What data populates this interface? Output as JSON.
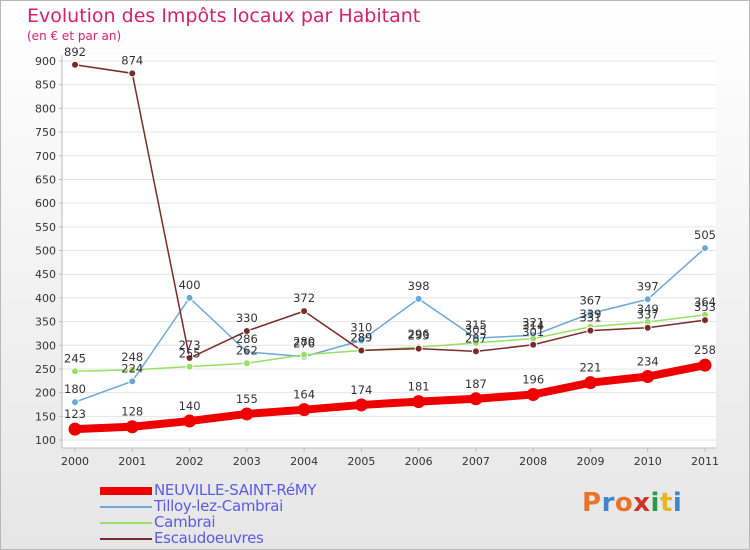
{
  "title": "Evolution des Impôts locaux par Habitant",
  "subtitle": "(en € et par an)",
  "logo": {
    "text": "Proxiti",
    "colors": [
      "#e8742a",
      "#3a86c8",
      "#e8742a",
      "#d0342c",
      "#2b9a46",
      "#e8b420",
      "#3a86c8"
    ]
  },
  "chart_data": {
    "type": "line",
    "title": "Evolution des Impôts locaux par Habitant",
    "subtitle": "(en € et par an)",
    "xlabel": "",
    "ylabel": "",
    "ylim": [
      100,
      900
    ],
    "yticks": [
      100,
      150,
      200,
      250,
      300,
      350,
      400,
      450,
      500,
      550,
      600,
      650,
      700,
      750,
      800,
      850,
      900
    ],
    "x": [
      "2000",
      "2001",
      "2002",
      "2003",
      "2004",
      "2005",
      "2006",
      "2007",
      "2008",
      "2009",
      "2010",
      "2011"
    ],
    "legend_position": "bottom-left",
    "series": [
      {
        "name": "NEUVILLE-SAINT-RéMY",
        "color": "#ee0000",
        "values": [
          123,
          128,
          140,
          155,
          164,
          174,
          181,
          187,
          196,
          221,
          234,
          258
        ]
      },
      {
        "name": "Tilloy-lez-Cambrai",
        "color": "#6aa8d8",
        "values": [
          180,
          224,
          400,
          286,
          276,
          310,
          398,
          315,
          321,
          367,
          397,
          505
        ]
      },
      {
        "name": "Cambrai",
        "color": "#99e066",
        "values": [
          245,
          248,
          255,
          262,
          280,
          289,
          296,
          305,
          314,
          339,
          349,
          364
        ]
      },
      {
        "name": "Escaudoeuvres",
        "color": "#7a2a2a",
        "values": [
          892,
          874,
          273,
          330,
          372,
          289,
          293,
          287,
          301,
          331,
          337,
          353
        ]
      }
    ]
  }
}
